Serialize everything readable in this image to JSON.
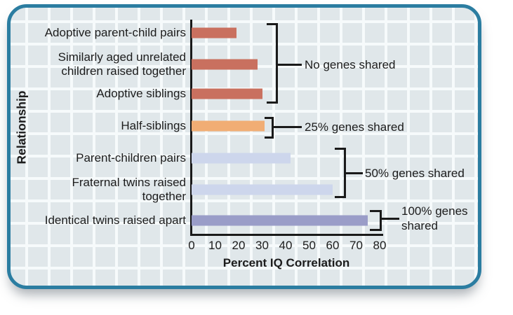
{
  "chart_data": {
    "type": "bar",
    "orientation": "horizontal",
    "xlabel": "Percent IQ Correlation",
    "ylabel": "Relationship",
    "xlim": [
      0,
      80
    ],
    "xticks": [
      0,
      10,
      20,
      30,
      40,
      50,
      60,
      70,
      80
    ],
    "grid": true,
    "categories": [
      "Adoptive parent-child pairs",
      "Similarly aged unrelated\nchildren raised together",
      "Adoptive siblings",
      "Half-siblings",
      "Parent-children pairs",
      "Fraternal twins raised\ntogether",
      "Identical twins raised apart"
    ],
    "values": [
      19,
      28,
      30,
      31,
      42,
      60,
      75
    ],
    "bar_colors": [
      "#c9705f",
      "#c9705f",
      "#c9705f",
      "#f1ad74",
      "#cdd6ec",
      "#cdd6ec",
      "#9a9dc8"
    ],
    "annotations": [
      {
        "label": "No genes shared",
        "bars": [
          0,
          1,
          2
        ]
      },
      {
        "label": "25% genes shared",
        "bars": [
          3
        ]
      },
      {
        "label": "50% genes shared",
        "bars": [
          4,
          5
        ]
      },
      {
        "label": "100% genes\nshared",
        "bars": [
          6
        ]
      }
    ],
    "colors": {
      "card_background": "#e0e7ea",
      "grid_line": "#f6fafb",
      "card_border": "#2b7da1",
      "axis_line": "#1a1a1a",
      "no_genes_bar": "#c9705f",
      "quarter_genes_bar": "#f1ad74",
      "half_genes_bar": "#cdd6ec",
      "full_genes_bar": "#9a9dc8"
    }
  }
}
